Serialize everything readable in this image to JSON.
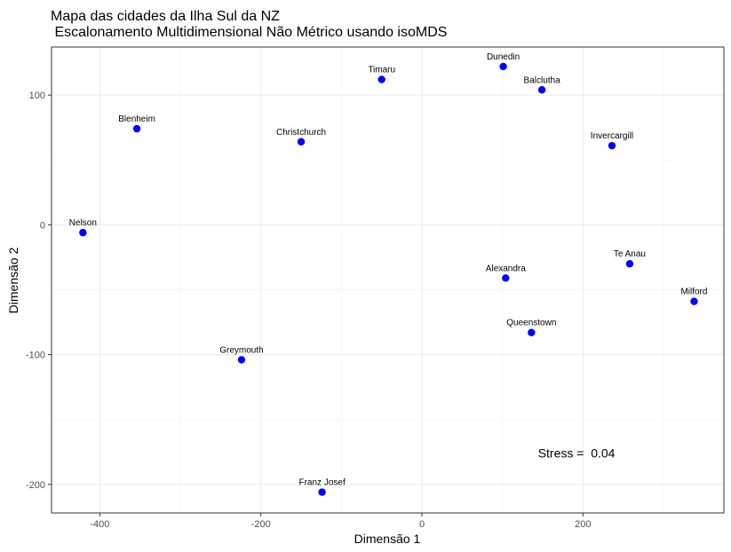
{
  "chart_data": {
    "type": "scatter",
    "title": "Mapa das cidades da Ilha Sul da NZ",
    "subtitle": " Escalonamento Multidimensional Não Métrico usando isoMDS",
    "xlabel": "Dimensão 1",
    "ylabel": "Dimensão 2",
    "xlim": [
      -460,
      375
    ],
    "ylim": [
      -222,
      137
    ],
    "x_ticks": [
      -400,
      -200,
      0,
      200
    ],
    "x_tick_labels": [
      "-400",
      "-200",
      "0",
      "200"
    ],
    "y_ticks": [
      -200,
      -100,
      0,
      100
    ],
    "y_tick_labels": [
      "-200",
      "-100",
      "0",
      "100"
    ],
    "grid": true,
    "point_color": "#0000ff",
    "points": [
      {
        "label": "Timaru",
        "x": -50,
        "y": 112
      },
      {
        "label": "Dunedin",
        "x": 101,
        "y": 122
      },
      {
        "label": "Balclutha",
        "x": 149,
        "y": 104
      },
      {
        "label": "Blenheim",
        "x": -354,
        "y": 74
      },
      {
        "label": "Christchurch",
        "x": -150,
        "y": 64
      },
      {
        "label": "Invercargill",
        "x": 236,
        "y": 61
      },
      {
        "label": "Nelson",
        "x": -421,
        "y": -6
      },
      {
        "label": "Te Anau",
        "x": 258,
        "y": -30
      },
      {
        "label": "Alexandra",
        "x": 104,
        "y": -41
      },
      {
        "label": "Milford",
        "x": 338,
        "y": -59
      },
      {
        "label": "Queenstown",
        "x": 136,
        "y": -83
      },
      {
        "label": "Greymouth",
        "x": -224,
        "y": -104
      },
      {
        "label": "Franz Josef",
        "x": -124,
        "y": -206
      }
    ],
    "annotation": {
      "text": "Stress =  0.04",
      "x": 192,
      "y": -176
    }
  }
}
